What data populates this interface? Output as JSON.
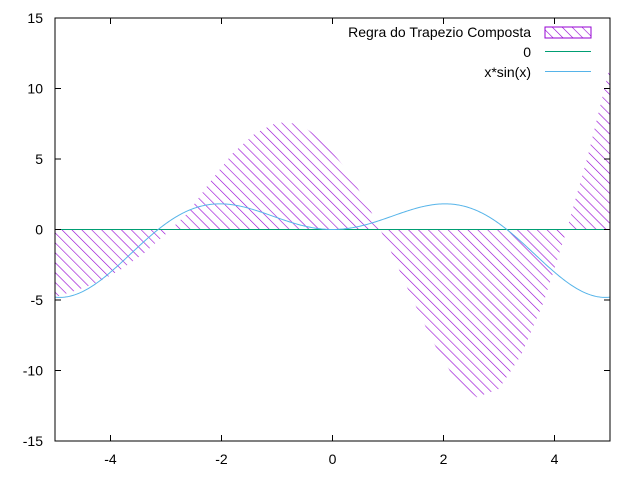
{
  "chart_data": {
    "type": "area",
    "xlim": [
      -5,
      5
    ],
    "ylim": [
      -15,
      15
    ],
    "x_ticks": [
      -4,
      -2,
      0,
      2,
      4
    ],
    "y_ticks": [
      -15,
      -10,
      -5,
      0,
      5,
      10,
      15
    ],
    "grid": false,
    "legend_position": "top-right",
    "colors": {
      "trapezoid": "#9400d3",
      "zero": "#009e73",
      "curve": "#56b4e9"
    },
    "series": [
      {
        "name": "Regra do Trapezio Composta",
        "style": "hatched-fill",
        "points": [
          [
            -5.0,
            -4.8
          ],
          [
            -4.6,
            -4.3
          ],
          [
            -4.2,
            -3.7
          ],
          [
            -3.8,
            -2.8
          ],
          [
            -3.4,
            -1.7
          ],
          [
            -3.0,
            -0.3
          ],
          [
            -2.6,
            1.2
          ],
          [
            -2.2,
            3.4
          ],
          [
            -1.8,
            5.4
          ],
          [
            -1.4,
            6.8
          ],
          [
            -1.0,
            7.6
          ],
          [
            -0.6,
            7.5
          ],
          [
            -0.2,
            6.4
          ],
          [
            0.2,
            4.5
          ],
          [
            0.6,
            2.0
          ],
          [
            1.0,
            -1.1
          ],
          [
            1.4,
            -4.6
          ],
          [
            1.8,
            -7.9
          ],
          [
            2.2,
            -10.6
          ],
          [
            2.6,
            -11.9
          ],
          [
            3.0,
            -11.3
          ],
          [
            3.4,
            -8.9
          ],
          [
            3.8,
            -5.2
          ],
          [
            4.2,
            -0.3
          ],
          [
            4.6,
            5.2
          ],
          [
            5.0,
            11.6
          ]
        ]
      },
      {
        "name": "0",
        "style": "line",
        "points": [
          [
            -5,
            0
          ],
          [
            5,
            0
          ]
        ]
      },
      {
        "name": "x*sin(x)",
        "style": "line",
        "function": "x*sin(x)"
      }
    ]
  }
}
